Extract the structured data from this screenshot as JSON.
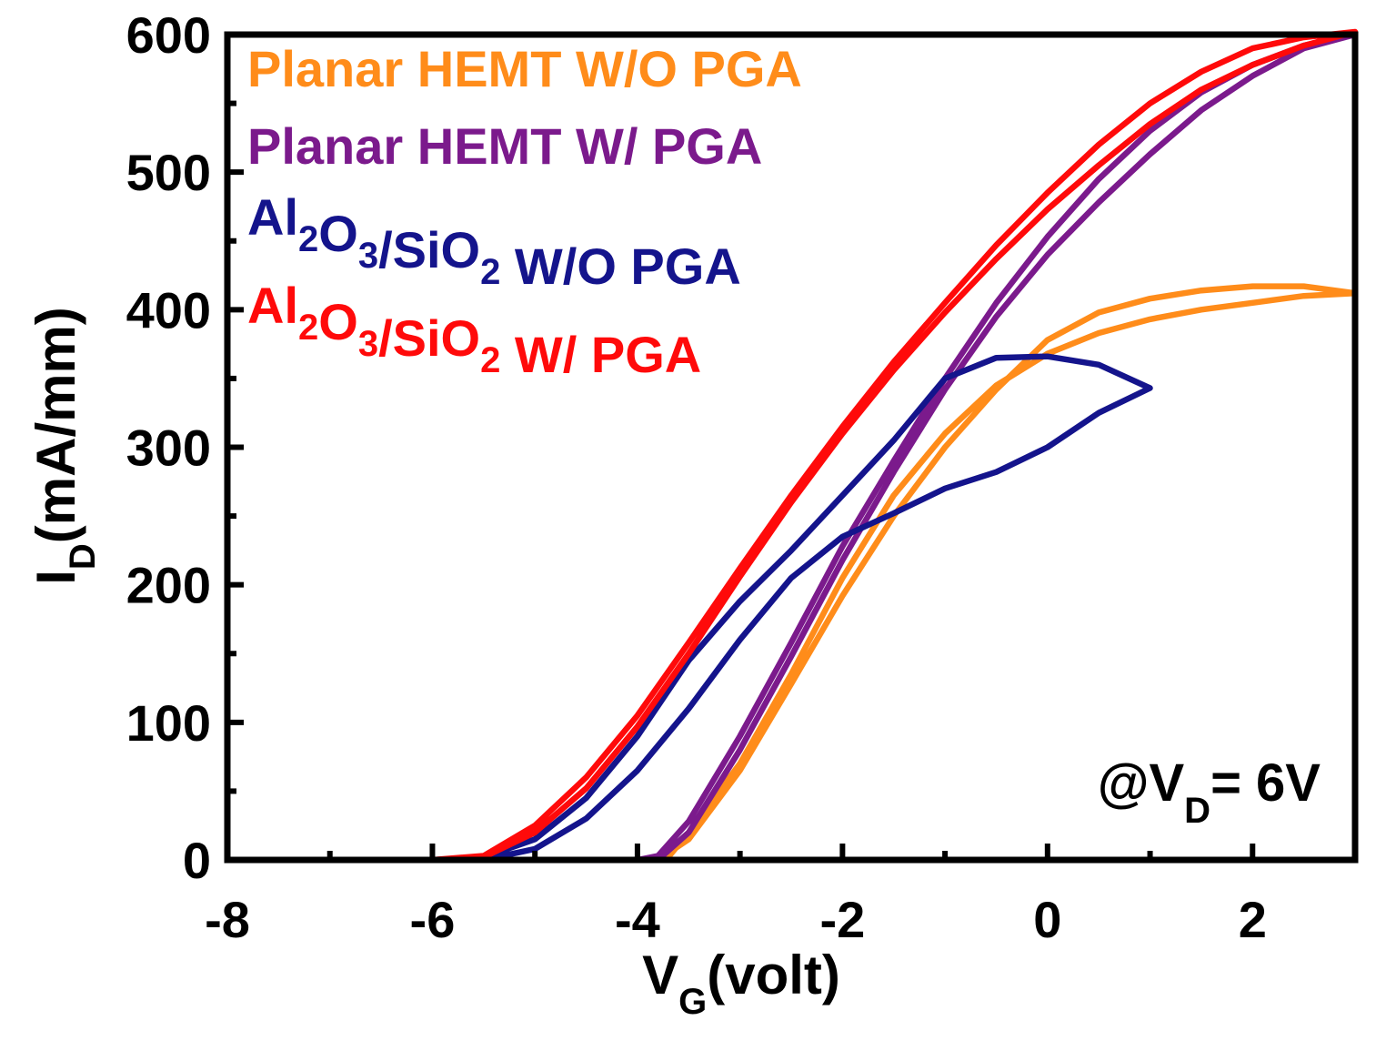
{
  "chart_data": {
    "type": "line",
    "xlabel": {
      "main": "V",
      "sub": "G",
      "rest": "(volt)"
    },
    "ylabel": {
      "main": "I",
      "sub": "D",
      "rest": "(mA/mm)"
    },
    "xlim": [
      -8,
      3
    ],
    "ylim": [
      0,
      600
    ],
    "xticks": [
      -8,
      -6,
      -4,
      -2,
      0,
      2
    ],
    "yticks": [
      0,
      100,
      200,
      300,
      400,
      500,
      600
    ],
    "grid": false,
    "legend_position": "top-left",
    "annotation": {
      "prefix": "@V",
      "sub": "D",
      "rest": "= 6V"
    },
    "series": [
      {
        "name": "Planar HEMT W/O PGA",
        "label_parts": [
          {
            "t": "Planar HEMT W/O PGA",
            "s": false
          }
        ],
        "color": "#FF8C1A",
        "points": [
          [
            -4.0,
            0
          ],
          [
            -3.7,
            2
          ],
          [
            -3.5,
            20
          ],
          [
            -3.0,
            70
          ],
          [
            -2.5,
            135
          ],
          [
            -2.0,
            205
          ],
          [
            -1.5,
            265
          ],
          [
            -1.0,
            310
          ],
          [
            -0.5,
            345
          ],
          [
            0,
            368
          ],
          [
            0.5,
            383
          ],
          [
            1.0,
            393
          ],
          [
            1.5,
            400
          ],
          [
            2.0,
            405
          ],
          [
            2.5,
            410
          ],
          [
            3.0,
            412
          ],
          [
            2.5,
            417
          ],
          [
            2.0,
            417
          ],
          [
            1.5,
            414
          ],
          [
            1.0,
            408
          ],
          [
            0.5,
            398
          ],
          [
            0,
            378
          ],
          [
            -0.5,
            342
          ],
          [
            -1.0,
            300
          ],
          [
            -1.5,
            250
          ],
          [
            -2.0,
            192
          ],
          [
            -2.5,
            128
          ],
          [
            -3.0,
            65
          ],
          [
            -3.5,
            15
          ],
          [
            -3.8,
            0
          ],
          [
            -4.0,
            0
          ]
        ]
      },
      {
        "name": "Planar HEMT W/ PGA",
        "label_parts": [
          {
            "t": "Planar HEMT W/ PGA",
            "s": false
          }
        ],
        "color": "#7B1A8C",
        "points": [
          [
            -6.0,
            0
          ],
          [
            -5.0,
            0
          ],
          [
            -4.0,
            0
          ],
          [
            -3.8,
            3
          ],
          [
            -3.5,
            28
          ],
          [
            -3.0,
            90
          ],
          [
            -2.5,
            158
          ],
          [
            -2.0,
            228
          ],
          [
            -1.5,
            290
          ],
          [
            -1.0,
            350
          ],
          [
            -0.5,
            405
          ],
          [
            0,
            453
          ],
          [
            0.5,
            495
          ],
          [
            1.0,
            530
          ],
          [
            1.5,
            558
          ],
          [
            2.0,
            578
          ],
          [
            2.5,
            592
          ],
          [
            3.0,
            600
          ],
          [
            2.5,
            590
          ],
          [
            2.0,
            570
          ],
          [
            1.5,
            545
          ],
          [
            1.0,
            513
          ],
          [
            0.5,
            478
          ],
          [
            0,
            440
          ],
          [
            -0.5,
            395
          ],
          [
            -1.0,
            342
          ],
          [
            -1.5,
            282
          ],
          [
            -2.0,
            218
          ],
          [
            -2.5,
            148
          ],
          [
            -3.0,
            80
          ],
          [
            -3.5,
            20
          ],
          [
            -3.8,
            0
          ],
          [
            -4.0,
            0
          ]
        ]
      },
      {
        "name": "Al2O3/SiO2 W/O PGA",
        "label_parts": [
          {
            "t": "Al",
            "s": false
          },
          {
            "t": "2",
            "s": true
          },
          {
            "t": "O",
            "s": false
          },
          {
            "t": "3",
            "s": true
          },
          {
            "t": "/SiO",
            "s": false
          },
          {
            "t": "2",
            "s": true
          },
          {
            "t": " W/O PGA",
            "s": false
          }
        ],
        "color": "#14148C",
        "points": [
          [
            -8.0,
            0
          ],
          [
            -6.0,
            0
          ],
          [
            -5.5,
            2
          ],
          [
            -5.0,
            15
          ],
          [
            -4.5,
            45
          ],
          [
            -4.0,
            90
          ],
          [
            -3.5,
            145
          ],
          [
            -3.0,
            188
          ],
          [
            -2.5,
            225
          ],
          [
            -2.0,
            265
          ],
          [
            -1.5,
            305
          ],
          [
            -1.0,
            350
          ],
          [
            -0.5,
            365
          ],
          [
            0,
            366
          ],
          [
            0.5,
            360
          ],
          [
            1.0,
            343
          ],
          [
            0.5,
            325
          ],
          [
            0,
            300
          ],
          [
            -0.5,
            282
          ],
          [
            -1.0,
            270
          ],
          [
            -1.5,
            252
          ],
          [
            -2.0,
            235
          ],
          [
            -2.5,
            205
          ],
          [
            -3.0,
            160
          ],
          [
            -3.5,
            110
          ],
          [
            -4.0,
            65
          ],
          [
            -4.5,
            30
          ],
          [
            -5.0,
            8
          ],
          [
            -5.5,
            0
          ],
          [
            -6.0,
            0
          ]
        ]
      },
      {
        "name": "Al2O3/SiO2 W/ PGA",
        "label_parts": [
          {
            "t": "Al",
            "s": false
          },
          {
            "t": "2",
            "s": true
          },
          {
            "t": "O",
            "s": false
          },
          {
            "t": "3",
            "s": true
          },
          {
            "t": "/SiO",
            "s": false
          },
          {
            "t": "2",
            "s": true
          },
          {
            "t": " W/ PGA",
            "s": false
          }
        ],
        "color": "#FF0A0A",
        "points": [
          [
            -7.0,
            0
          ],
          [
            -6.0,
            0
          ],
          [
            -5.5,
            3
          ],
          [
            -5.0,
            25
          ],
          [
            -4.5,
            60
          ],
          [
            -4.0,
            105
          ],
          [
            -3.5,
            158
          ],
          [
            -3.0,
            212
          ],
          [
            -2.5,
            265
          ],
          [
            -2.0,
            315
          ],
          [
            -1.5,
            362
          ],
          [
            -1.0,
            405
          ],
          [
            -0.5,
            447
          ],
          [
            0,
            485
          ],
          [
            0.5,
            520
          ],
          [
            1.0,
            550
          ],
          [
            1.5,
            573
          ],
          [
            2.0,
            590
          ],
          [
            2.5,
            598
          ],
          [
            3.0,
            602
          ],
          [
            2.5,
            592
          ],
          [
            2.0,
            578
          ],
          [
            1.5,
            560
          ],
          [
            1.0,
            535
          ],
          [
            0.5,
            505
          ],
          [
            0,
            473
          ],
          [
            -0.5,
            437
          ],
          [
            -1.0,
            398
          ],
          [
            -1.5,
            356
          ],
          [
            -2.0,
            310
          ],
          [
            -2.5,
            260
          ],
          [
            -3.0,
            206
          ],
          [
            -3.5,
            150
          ],
          [
            -4.0,
            97
          ],
          [
            -4.5,
            52
          ],
          [
            -5.0,
            20
          ],
          [
            -5.5,
            2
          ],
          [
            -6.0,
            0
          ],
          [
            -7.0,
            0
          ]
        ]
      }
    ]
  }
}
